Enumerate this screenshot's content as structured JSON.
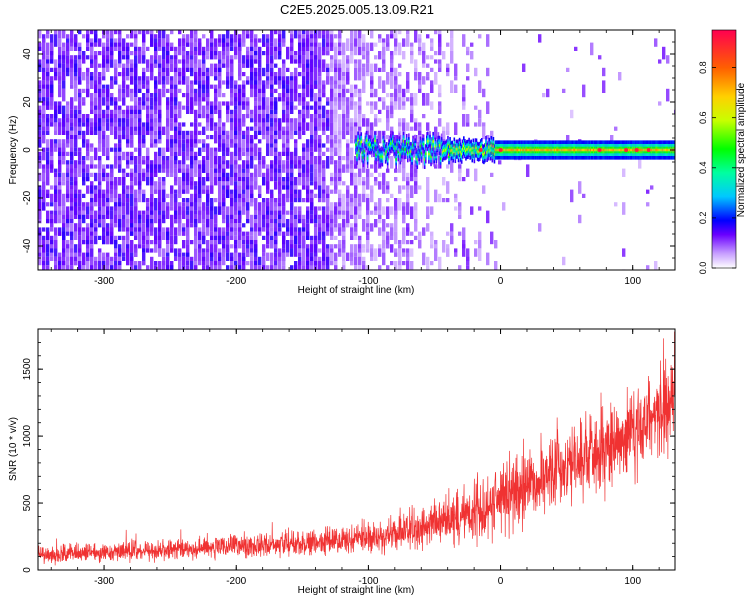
{
  "figure_title": "C2E5.2025.005.13.09.R21",
  "chart_data": [
    {
      "type": "heatmap",
      "title": "C2E5.2025.005.13.09.R21",
      "xlabel": "Height of straight line (km)",
      "ylabel": "Frequency (Hz)",
      "xlim": [
        -350,
        132
      ],
      "ylim": [
        -50,
        50
      ],
      "xticks": [
        -300,
        -200,
        -100,
        0,
        100
      ],
      "xtick_labels": [
        "-300",
        "-200",
        "-100",
        "0",
        "100"
      ],
      "yticks": [
        -40,
        -20,
        0,
        20,
        40
      ],
      "ytick_labels": [
        "-40",
        "-20",
        "0",
        "20",
        "40"
      ],
      "colorbar": {
        "label": "Normalized spectral amplitude",
        "range": [
          0,
          0.95
        ],
        "ticks": [
          0,
          0.2,
          0.4,
          0.6,
          0.8
        ],
        "tick_labels": [
          "0.0",
          "0.2",
          "0.4",
          "0.6",
          "0.8"
        ],
        "colormap": "rainbow"
      },
      "signal": {
        "description_values": "narrow band near 0 Hz",
        "onset_km": -110,
        "steady_from_km": -45,
        "band_halfwidth_hz": 2.5,
        "peak_amplitude": 0.9
      },
      "noise_region_km": [
        -350,
        -40
      ]
    },
    {
      "type": "line",
      "title": "",
      "xlabel": "Height of straight line (km)",
      "ylabel": "SNR (10 * v/v)",
      "xlim": [
        -350,
        132
      ],
      "ylim": [
        0,
        1800
      ],
      "xticks": [
        -300,
        -200,
        -100,
        0,
        100
      ],
      "xtick_labels": [
        "-300",
        "-200",
        "-100",
        "0",
        "100"
      ],
      "yticks": [
        0,
        500,
        1000,
        1500
      ],
      "ytick_labels": [
        "0",
        "500",
        "1000",
        "1500"
      ],
      "series": [
        {
          "name": "SNR",
          "color": "#f03232",
          "envelope_x": [
            -350,
            -300,
            -250,
            -200,
            -150,
            -100,
            -75,
            -50,
            -25,
            0,
            25,
            50,
            75,
            100,
            132
          ],
          "envelope_mean": [
            110,
            130,
            150,
            175,
            200,
            240,
            280,
            340,
            420,
            520,
            650,
            780,
            900,
            1050,
            1250
          ],
          "envelope_spread": [
            70,
            75,
            80,
            90,
            100,
            120,
            150,
            190,
            230,
            270,
            300,
            310,
            320,
            330,
            350
          ]
        }
      ]
    }
  ]
}
